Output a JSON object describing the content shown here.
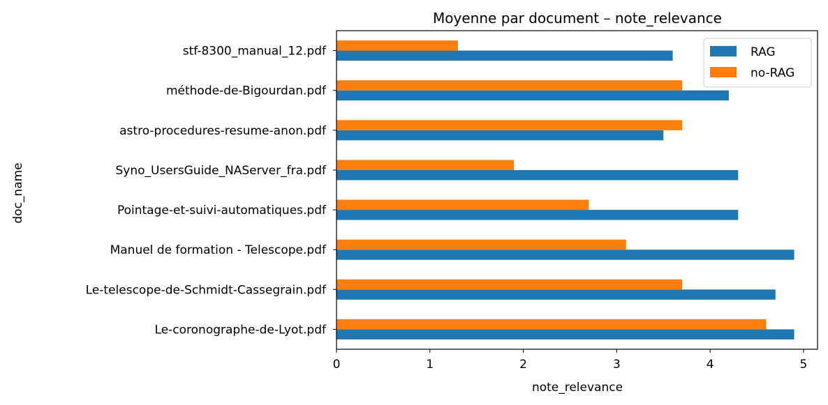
{
  "chart_data": {
    "type": "bar",
    "orientation": "horizontal",
    "title": "Moyenne par document – note_relevance",
    "xlabel": "note_relevance",
    "ylabel": "doc_name",
    "xlim": [
      0,
      5.15
    ],
    "xticks": [
      "0",
      "1",
      "2",
      "3",
      "4",
      "5"
    ],
    "legend_position": "top-right",
    "grid": false,
    "categories": [
      "stf-8300_manual_12.pdf",
      "méthode-de-Bigourdan.pdf",
      "astro-procedures-resume-anon.pdf",
      "Syno_UsersGuide_NAServer_fra.pdf",
      "Pointage-et-suivi-automatiques.pdf",
      "Manuel de formation - Telescope.pdf",
      "Le-telescope-de-Schmidt-Cassegrain.pdf",
      "Le-coronographe-de-Lyot.pdf"
    ],
    "series": [
      {
        "name": "RAG",
        "color": "#1f77b4",
        "values": [
          3.6,
          4.2,
          3.5,
          4.3,
          4.3,
          4.9,
          4.7,
          4.9
        ]
      },
      {
        "name": "no-RAG",
        "color": "#ff7f0e",
        "values": [
          1.3,
          3.7,
          3.7,
          1.9,
          2.7,
          3.1,
          3.7,
          4.6
        ]
      }
    ]
  }
}
